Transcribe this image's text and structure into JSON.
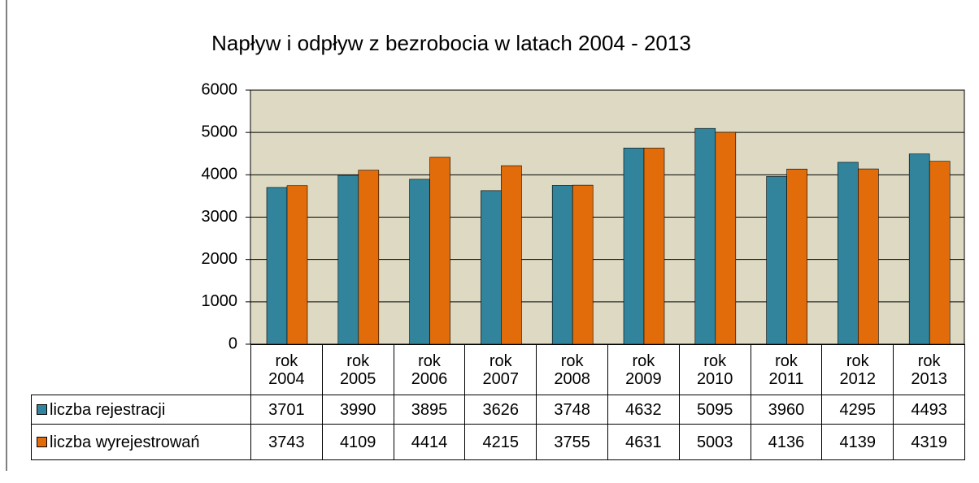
{
  "chart_data": {
    "type": "bar",
    "title": "Napływ i odpływ z bezrobocia w latach 2004 - 2013",
    "categories": [
      "rok 2004",
      "rok 2005",
      "rok 2006",
      "rok 2007",
      "rok 2008",
      "rok 2009",
      "rok 2010",
      "rok 2011",
      "rok 2012",
      "rok 2013"
    ],
    "series": [
      {
        "name": "liczba rejestracji",
        "color": "#31849b",
        "values": [
          3701,
          3990,
          3895,
          3626,
          3748,
          4632,
          5095,
          3960,
          4295,
          4493
        ]
      },
      {
        "name": "liczba wyrejestrowań",
        "color": "#e36c0a",
        "values": [
          3743,
          4109,
          4414,
          4215,
          3755,
          4631,
          5003,
          4136,
          4139,
          4319
        ]
      }
    ],
    "ylim": [
      0,
      6000
    ],
    "yticks": [
      0,
      1000,
      2000,
      3000,
      4000,
      5000,
      6000
    ],
    "grid": true,
    "plot_background": "#ddd9c3"
  }
}
